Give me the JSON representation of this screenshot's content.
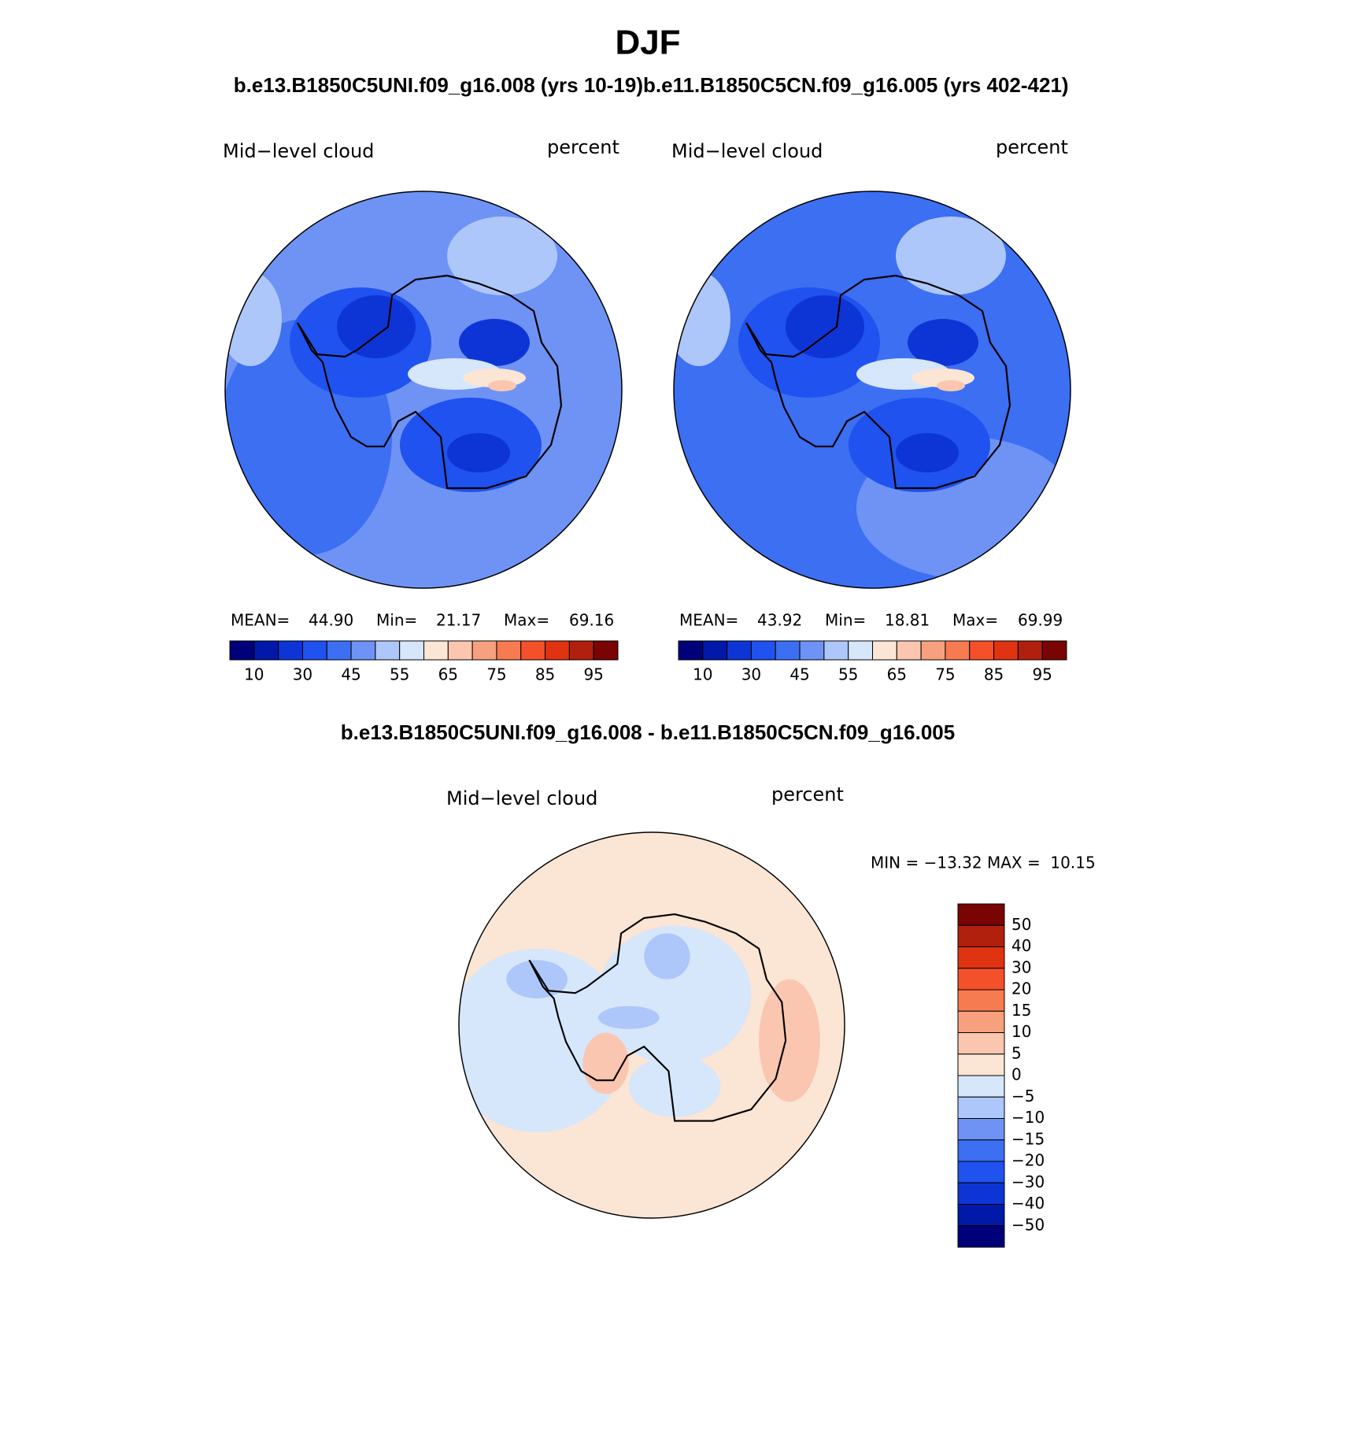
{
  "title": "DJF",
  "panels": [
    {
      "case": "b.e13.B1850C5UNI.f09_g16.008 (yrs 10-19)",
      "left": "Mid−level cloud",
      "right": "percent",
      "stats": [
        "MEAN=",
        "44.90",
        "Min=",
        "21.17",
        "Max=",
        "69.16"
      ]
    },
    {
      "case": "b.e11.B1850C5CN.f09_g16.005 (yrs 402-421)",
      "left": "Mid−level cloud",
      "right": "percent",
      "stats": [
        "MEAN=",
        "43.92",
        "Min=",
        "18.81",
        "Max=",
        "69.99"
      ]
    }
  ],
  "colorbar": {
    "colors": [
      "#00007a",
      "#0019a8",
      "#0d35d6",
      "#1f52ee",
      "#3c6ff2",
      "#6e93f5",
      "#adc7fa",
      "#d6e6fb",
      "#fbe5d4",
      "#fac6b0",
      "#f7a07e",
      "#f67b50",
      "#f4502a",
      "#e03311",
      "#b0200c",
      "#7a0403"
    ],
    "labels": [
      "10",
      "30",
      "45",
      "55",
      "65",
      "75",
      "85",
      "95"
    ]
  },
  "difference": {
    "title": "b.e13.B1850C5UNI.f09_g16.008 - b.e11.B1850C5CN.f09_g16.005",
    "left": "Mid−level cloud",
    "right": "percent",
    "stats": "MIN = −13.32 MAX =  10.15",
    "labels": [
      "50",
      "40",
      "30",
      "20",
      "15",
      "10",
      "5",
      "0",
      "−5",
      "−10",
      "−15",
      "−20",
      "−30",
      "−40",
      "−50"
    ]
  }
}
